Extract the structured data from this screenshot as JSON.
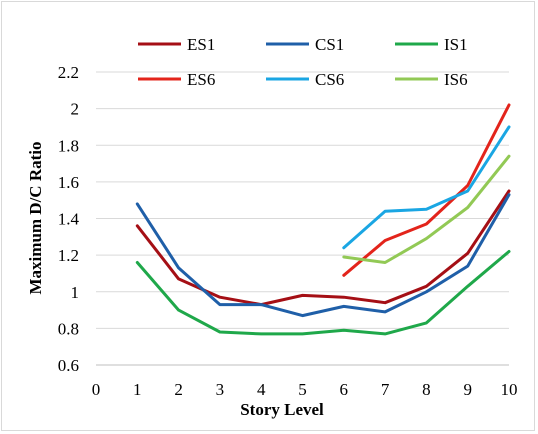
{
  "chart_data": {
    "type": "line",
    "title": "",
    "xlabel": "Story Level",
    "ylabel": "Maximum D/C Ratio",
    "xlim": [
      0,
      10
    ],
    "ylim": [
      0.6,
      2.2
    ],
    "xticks": [
      "0",
      "1",
      "2",
      "3",
      "4",
      "5",
      "6",
      "7",
      "8",
      "9",
      "10"
    ],
    "yticks": [
      "0.6",
      "0.8",
      "1",
      "1.2",
      "1.4",
      "1.6",
      "1.8",
      "2",
      "2.2"
    ],
    "grid": "horizontal",
    "legend_position": "top",
    "series": [
      {
        "name": "ES1",
        "color": "#a50f15",
        "x": [
          1,
          2,
          3,
          4,
          5,
          6,
          7,
          8,
          9,
          10
        ],
        "y": [
          1.36,
          1.07,
          0.97,
          0.93,
          0.98,
          0.97,
          0.94,
          1.03,
          1.21,
          1.55
        ]
      },
      {
        "name": "CS1",
        "color": "#1f5fa8",
        "x": [
          1,
          2,
          3,
          4,
          5,
          6,
          7,
          8,
          9,
          10
        ],
        "y": [
          1.48,
          1.13,
          0.93,
          0.93,
          0.87,
          0.92,
          0.89,
          1.0,
          1.14,
          1.53
        ]
      },
      {
        "name": "IS1",
        "color": "#1fa84a",
        "x": [
          1,
          2,
          3,
          4,
          5,
          6,
          7,
          8,
          9,
          10
        ],
        "y": [
          1.16,
          0.9,
          0.78,
          0.77,
          0.77,
          0.79,
          0.77,
          0.83,
          1.03,
          1.22
        ]
      },
      {
        "name": "ES6",
        "color": "#e3241b",
        "x": [
          6,
          7,
          8,
          9,
          10
        ],
        "y": [
          1.09,
          1.28,
          1.37,
          1.58,
          2.02
        ]
      },
      {
        "name": "CS6",
        "color": "#1aa6e3",
        "x": [
          6,
          7,
          8,
          9,
          10
        ],
        "y": [
          1.24,
          1.44,
          1.45,
          1.55,
          1.9
        ]
      },
      {
        "name": "IS6",
        "color": "#92c955",
        "x": [
          6,
          7,
          8,
          9,
          10
        ],
        "y": [
          1.19,
          1.16,
          1.29,
          1.46,
          1.74
        ]
      }
    ]
  }
}
